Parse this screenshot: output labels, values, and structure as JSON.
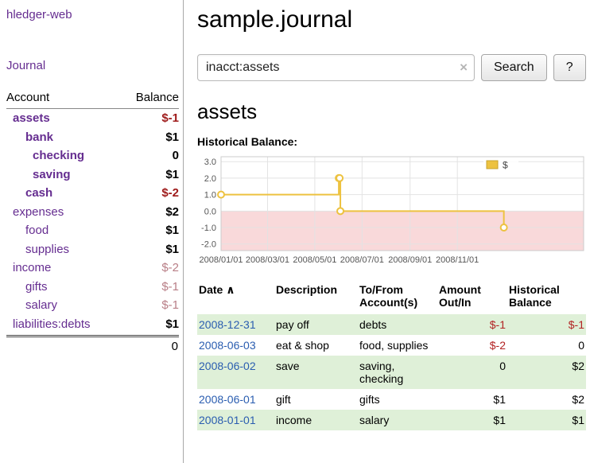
{
  "colors": {
    "link_purple": "#652d90",
    "negative_strong": "#9e1a1a",
    "negative_soft": "#b87e86",
    "table_negative": "#b22222",
    "date_link_blue": "#2a5db0",
    "row_stripe_green": "#dff0d8",
    "chart_line_gold": "#edc240",
    "chart_negative_region": "#f9d9da"
  },
  "app": {
    "title": "hledger-web",
    "journal_link": "Journal"
  },
  "sidebar": {
    "headers": {
      "account": "Account",
      "balance": "Balance"
    },
    "accounts": [
      {
        "name": "assets",
        "balance": "$-1"
      },
      {
        "name": "bank",
        "balance": "$1"
      },
      {
        "name": "checking",
        "balance": "0"
      },
      {
        "name": "saving",
        "balance": "$1"
      },
      {
        "name": "cash",
        "balance": "$-2"
      },
      {
        "name": "expenses",
        "balance": "$2"
      },
      {
        "name": "food",
        "balance": "$1"
      },
      {
        "name": "supplies",
        "balance": "$1"
      },
      {
        "name": "income",
        "balance": "$-2"
      },
      {
        "name": "gifts",
        "balance": "$-1"
      },
      {
        "name": "salary",
        "balance": "$-1"
      },
      {
        "name": "liabilities:debts",
        "balance": "$1"
      }
    ],
    "total": "0"
  },
  "main": {
    "title": "sample.journal",
    "search": {
      "value": "inacct:assets",
      "clear_icon": "×",
      "button_label": "Search",
      "help_label": "?"
    },
    "section_title": "assets",
    "chart_label": "Historical Balance:"
  },
  "chart_data": {
    "type": "line",
    "title": "Historical Balance",
    "x_unit": "days since 2008-01-01",
    "series": [
      {
        "name": "$",
        "color": "#edc240",
        "steps": true,
        "points": [
          [
            0,
            1
          ],
          [
            152,
            2
          ],
          [
            153,
            2
          ],
          [
            154,
            0
          ],
          [
            365,
            -1
          ]
        ]
      }
    ],
    "x_domain": [
      0,
      468
    ],
    "y_domain": [
      -2.4,
      3.3
    ],
    "x_ticks": [
      {
        "pos": 0,
        "label": "2008/01/01"
      },
      {
        "pos": 60,
        "label": "2008/03/01"
      },
      {
        "pos": 121,
        "label": "2008/05/01"
      },
      {
        "pos": 182,
        "label": "2008/07/01"
      },
      {
        "pos": 244,
        "label": "2008/09/01"
      },
      {
        "pos": 305,
        "label": "2008/11/01"
      }
    ],
    "y_ticks": [
      3.0,
      2.0,
      1.0,
      0.0,
      -1.0,
      -2.0
    ],
    "y_tick_labels": [
      "3.0",
      "2.0",
      "1.0",
      "0.0",
      "-1.0",
      "-2.0"
    ],
    "negative_region_fill": "#f9d9da",
    "grid": true,
    "legend": {
      "label": "$",
      "position": "top-right"
    }
  },
  "transactions": {
    "headers": {
      "date": "Date",
      "sort_indicator": "∧",
      "description": "Description",
      "account_line1": "To/From",
      "account_line2": "Account(s)",
      "amount_line1": "Amount",
      "amount_line2": "Out/In",
      "balance_line1": "Historical",
      "balance_line2": "Balance"
    },
    "rows": [
      {
        "date": "2008-12-31",
        "description": "pay off",
        "accounts": "debts",
        "amount": "$-1",
        "balance": "$-1"
      },
      {
        "date": "2008-06-03",
        "description": "eat & shop",
        "accounts": "food, supplies",
        "amount": "$-2",
        "balance": "0"
      },
      {
        "date": "2008-06-02",
        "description": "save",
        "accounts": "saving, checking",
        "amount": "0",
        "balance": "$2"
      },
      {
        "date": "2008-06-01",
        "description": "gift",
        "accounts": "gifts",
        "amount": "$1",
        "balance": "$2"
      },
      {
        "date": "2008-01-01",
        "description": "income",
        "accounts": "salary",
        "amount": "$1",
        "balance": "$1"
      }
    ]
  }
}
